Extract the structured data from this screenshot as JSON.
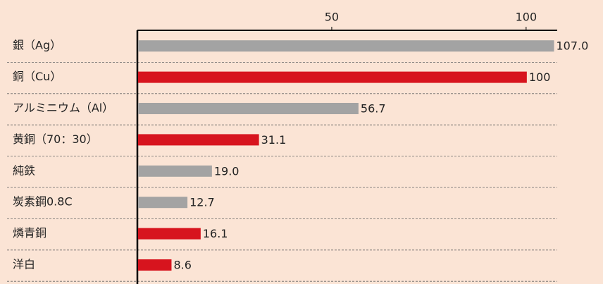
{
  "chart_data": {
    "type": "hbar",
    "categories": [
      "銀（Ag）",
      "銅（Cu）",
      "アルミニウム（Al）",
      "黄銅（70：30）",
      "純鉄",
      "炭素鋼0.8C",
      "燐青銅",
      "洋白"
    ],
    "values": [
      107.0,
      100,
      56.7,
      31.1,
      19.0,
      12.7,
      16.1,
      8.6
    ],
    "value_labels": [
      "107.0",
      "100",
      "56.7",
      "31.1",
      "19.0",
      "12.7",
      "16.1",
      "8.6"
    ],
    "colors": [
      "#a3a3a3",
      "#d7141e",
      "#a3a3a3",
      "#d7141e",
      "#a3a3a3",
      "#a3a3a3",
      "#d7141e",
      "#d7141e"
    ],
    "xlim": [
      0,
      108
    ],
    "xticks": [
      50,
      100
    ]
  }
}
